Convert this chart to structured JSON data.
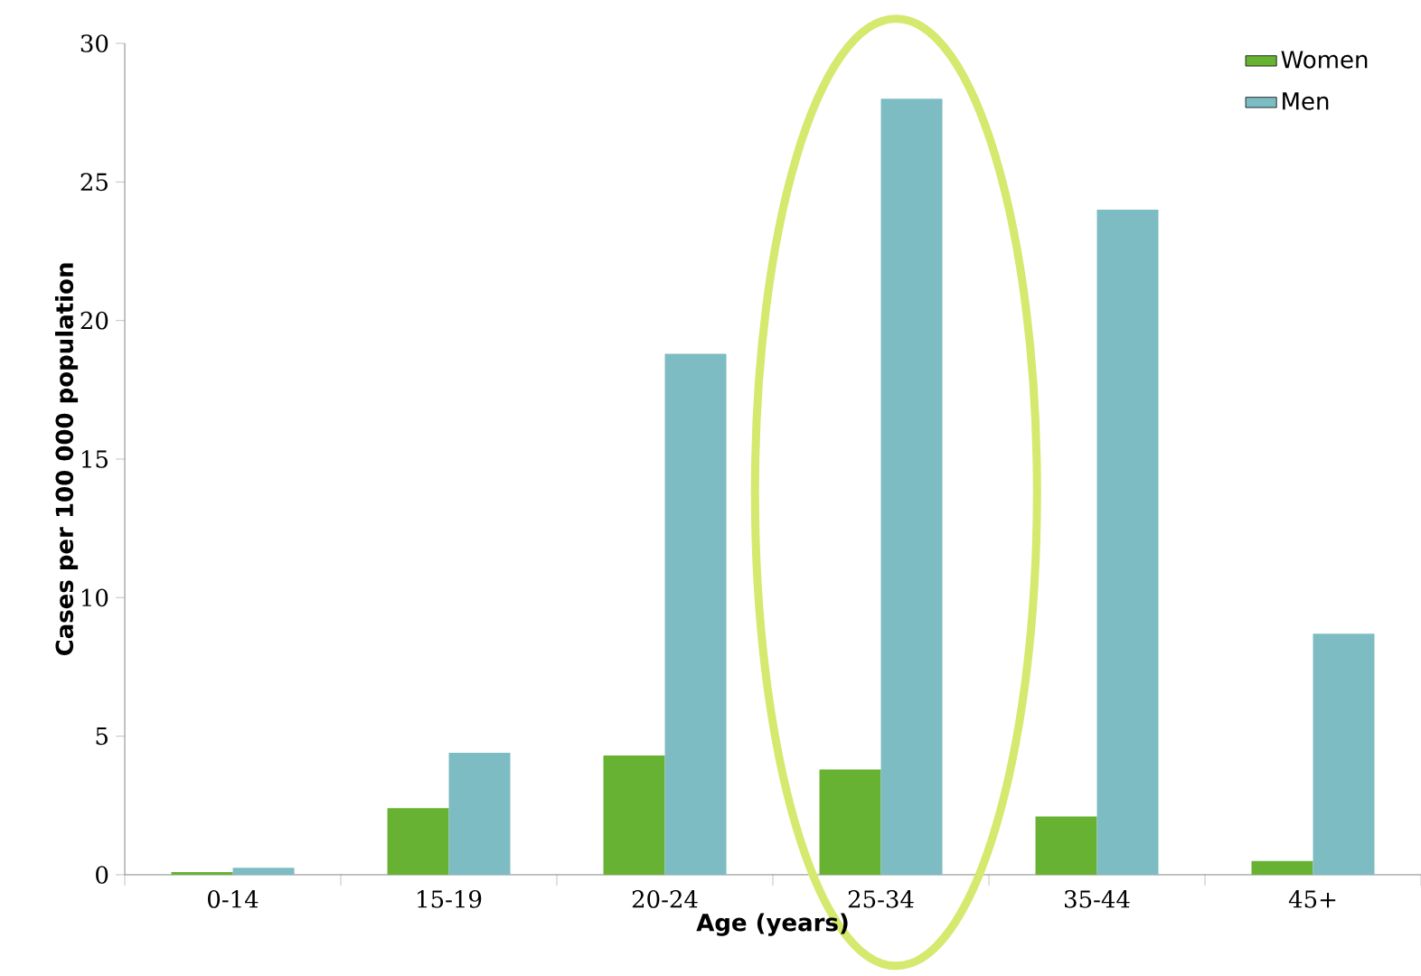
{
  "chart_data": {
    "type": "bar",
    "xlabel": "Age (years)",
    "ylabel": "Cases per 100 000 population",
    "categories": [
      "0-14",
      "15-19",
      "20-24",
      "25-34",
      "35-44",
      "45+"
    ],
    "series": [
      {
        "name": "Women",
        "color": "#67b232",
        "values": [
          0.1,
          2.4,
          4.3,
          3.8,
          2.1,
          0.5
        ]
      },
      {
        "name": "Men",
        "color": "#7dbcc2",
        "values": [
          0.25,
          4.4,
          18.8,
          28.0,
          24.0,
          8.7
        ]
      }
    ],
    "ylim": [
      0,
      30
    ],
    "yticks": [
      0,
      5,
      10,
      15,
      20,
      25,
      30
    ],
    "grid": false,
    "legend": "top right"
  }
}
